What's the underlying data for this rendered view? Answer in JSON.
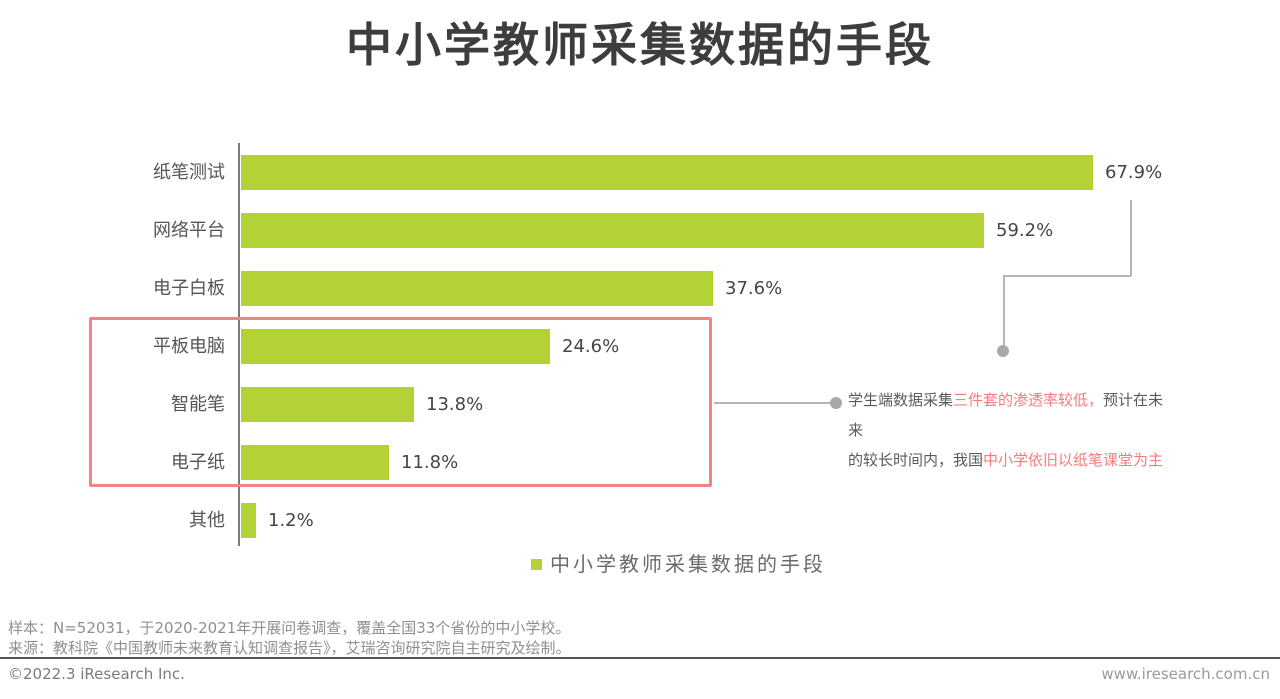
{
  "title": "中小学教师采集数据的手段",
  "chart_data": {
    "type": "bar",
    "orientation": "horizontal",
    "title": "中小学教师采集数据的手段",
    "categories": [
      "纸笔测试",
      "网络平台",
      "电子白板",
      "平板电脑",
      "智能笔",
      "电子纸",
      "其他"
    ],
    "values": [
      67.9,
      59.2,
      37.6,
      24.6,
      13.8,
      11.8,
      1.2
    ],
    "value_labels": [
      "67.9%",
      "59.2%",
      "37.6%",
      "24.6%",
      "13.8%",
      "11.8%",
      "1.2%"
    ],
    "unit": "%",
    "xlim": [
      0,
      70
    ],
    "grid": false,
    "legend_position": "bottom",
    "legend_entries": [
      "中小学教师采集数据的手段"
    ],
    "bar_color": "#b2d235",
    "highlighted_categories": [
      "平板电脑",
      "智能笔",
      "电子纸"
    ]
  },
  "legend": {
    "label": "中小学教师采集数据的手段"
  },
  "annotation": {
    "line1": {
      "seg1": "学生端数据采集",
      "seg2": "三件套的渗透率较低，",
      "seg3": "预计在未来"
    },
    "line2": {
      "seg1": "的较长时间内，我国",
      "seg2": "中小学依旧以纸笔课堂为主"
    }
  },
  "footer": {
    "sample_note": "样本：N=52031，于2020-2021年开展问卷调查，覆盖全国33个省份的中小学校。",
    "source_note": "来源：教科院《中国教师未来教育认知调查报告》，艾瑞咨询研究院自主研究及绘制。",
    "copyright": "©2022.3 iResearch Inc.",
    "website": "www.iresearch.com.cn"
  },
  "colors": {
    "bar_green": "#b2d235",
    "highlight_red": "#f48383",
    "emphasis_text_red": "#f47c7c",
    "title_text": "#3d3d3d",
    "body_text": "#555555",
    "connector_gray": "#b5b5b5"
  }
}
